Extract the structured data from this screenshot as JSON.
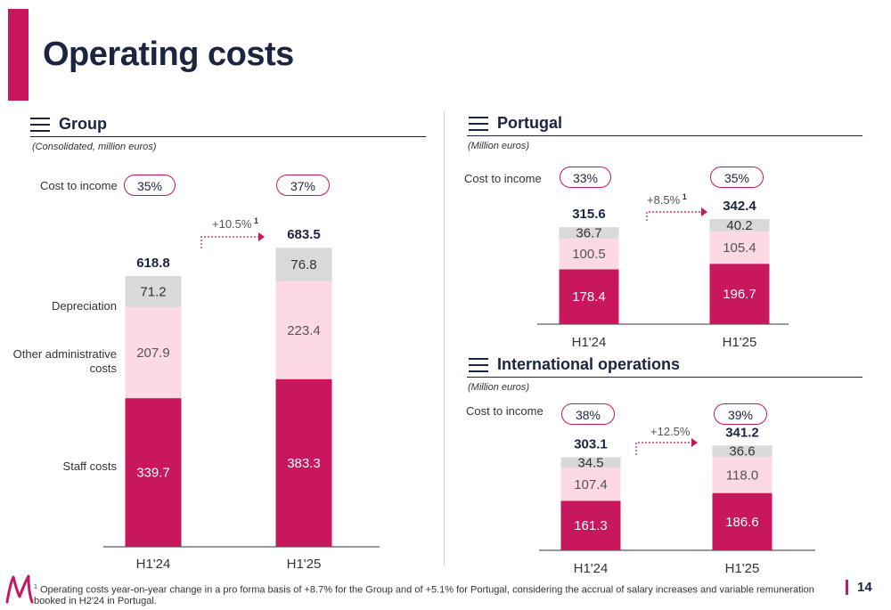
{
  "page": {
    "title": "Operating costs",
    "page_number": "14"
  },
  "colors": {
    "staff": "#c8175c",
    "other": "#fcd9e3",
    "depreciation": "#d9d9d9",
    "accent": "#c8175c",
    "navy": "#1b2542"
  },
  "group": {
    "title": "Group",
    "subtitle": "(Consolidated, million euros)",
    "cost_to_income_label": "Cost to income",
    "row_labels": {
      "depreciation": "Depreciation",
      "other": "Other administrative costs",
      "staff": "Staff costs"
    }
  },
  "portugal": {
    "title": "Portugal",
    "subtitle": "(Million euros)",
    "cost_to_income_label": "Cost to income"
  },
  "international": {
    "title": "International operations",
    "subtitle": "(Million euros)",
    "cost_to_income_label": "Cost to income"
  },
  "chart_data": [
    {
      "type": "bar",
      "stacked": true,
      "title": "Group",
      "categories": [
        "H1'24",
        "H1'25"
      ],
      "series": [
        {
          "name": "Staff costs",
          "values": [
            339.7,
            383.3
          ]
        },
        {
          "name": "Other administrative costs",
          "values": [
            207.9,
            223.4
          ]
        },
        {
          "name": "Depreciation",
          "values": [
            71.2,
            76.8
          ]
        }
      ],
      "totals": [
        "618.8",
        "683.5"
      ],
      "cost_to_income": [
        "35%",
        "37%"
      ],
      "change": {
        "text": "+10.5%",
        "note": "1"
      }
    },
    {
      "type": "bar",
      "stacked": true,
      "title": "Portugal",
      "categories": [
        "H1'24",
        "H1'25"
      ],
      "series": [
        {
          "name": "Staff costs",
          "values": [
            178.4,
            196.7
          ]
        },
        {
          "name": "Other administrative costs",
          "values": [
            100.5,
            105.4
          ]
        },
        {
          "name": "Depreciation",
          "values": [
            36.7,
            40.2
          ]
        }
      ],
      "totals": [
        "315.6",
        "342.4"
      ],
      "cost_to_income": [
        "33%",
        "35%"
      ],
      "change": {
        "text": "+8.5%",
        "note": "1"
      }
    },
    {
      "type": "bar",
      "stacked": true,
      "title": "International operations",
      "categories": [
        "H1'24",
        "H1'25"
      ],
      "series": [
        {
          "name": "Staff costs",
          "values": [
            161.3,
            186.6
          ]
        },
        {
          "name": "Other administrative costs",
          "values": [
            107.4,
            118.0
          ]
        },
        {
          "name": "Depreciation",
          "values": [
            34.5,
            36.6
          ]
        }
      ],
      "totals": [
        "303.1",
        "341.2"
      ],
      "cost_to_income": [
        "38%",
        "39%"
      ],
      "change": {
        "text": "+12.5%",
        "note": ""
      }
    }
  ],
  "footnote": {
    "marker": "1",
    "text": "Operating costs year-on-year change in a pro forma basis of +8.7% for the Group and of +5.1% for Portugal, considering the accrual of salary increases and variable remuneration booked in H2'24 in Portugal."
  }
}
